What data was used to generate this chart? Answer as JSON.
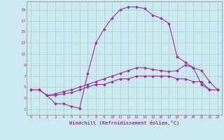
{
  "xlabel": "Windchill (Refroidissement éolien,°C)",
  "bg_color": "#cce8f0",
  "grid_color": "#aacccc",
  "line_color": "#993399",
  "xlim": [
    -0.5,
    23.5
  ],
  "ylim": [
    0,
    20.5
  ],
  "xticks": [
    0,
    1,
    2,
    3,
    4,
    5,
    6,
    7,
    8,
    9,
    10,
    11,
    12,
    13,
    14,
    15,
    16,
    17,
    18,
    19,
    20,
    21,
    22,
    23
  ],
  "yticks": [
    1,
    3,
    5,
    7,
    9,
    11,
    13,
    15,
    17,
    19
  ],
  "curve1_x": [
    0,
    1,
    2,
    3,
    4,
    5,
    6,
    7,
    8,
    9,
    10,
    11,
    12,
    13,
    14,
    15,
    16,
    17,
    18,
    19,
    20,
    21,
    22,
    23
  ],
  "curve1_y": [
    4.5,
    4.5,
    3.5,
    2.0,
    2.0,
    1.5,
    1.2,
    7.5,
    13.0,
    15.5,
    17.5,
    19.0,
    19.5,
    19.5,
    19.2,
    18.0,
    17.5,
    16.5,
    10.5,
    9.5,
    8.5,
    5.5,
    4.5,
    4.5
  ],
  "curve2_x": [
    0,
    1,
    2,
    3,
    4,
    5,
    6,
    7,
    8,
    9,
    10,
    11,
    12,
    13,
    14,
    15,
    16,
    17,
    18,
    19,
    20,
    21,
    22,
    23
  ],
  "curve2_y": [
    4.5,
    4.5,
    3.5,
    3.8,
    4.2,
    4.5,
    5.0,
    5.5,
    6.0,
    6.5,
    7.0,
    7.5,
    8.0,
    8.5,
    8.5,
    8.2,
    8.0,
    7.8,
    8.0,
    9.0,
    8.5,
    8.0,
    6.0,
    4.5
  ],
  "curve3_x": [
    0,
    1,
    2,
    3,
    4,
    5,
    6,
    7,
    8,
    9,
    10,
    11,
    12,
    13,
    14,
    15,
    16,
    17,
    18,
    19,
    20,
    21,
    22,
    23
  ],
  "curve3_y": [
    4.5,
    4.5,
    3.5,
    3.5,
    3.8,
    4.0,
    4.5,
    5.0,
    5.5,
    5.5,
    6.0,
    6.5,
    6.5,
    7.0,
    7.0,
    7.0,
    7.0,
    7.0,
    6.5,
    6.5,
    6.0,
    6.0,
    4.5,
    4.5
  ]
}
